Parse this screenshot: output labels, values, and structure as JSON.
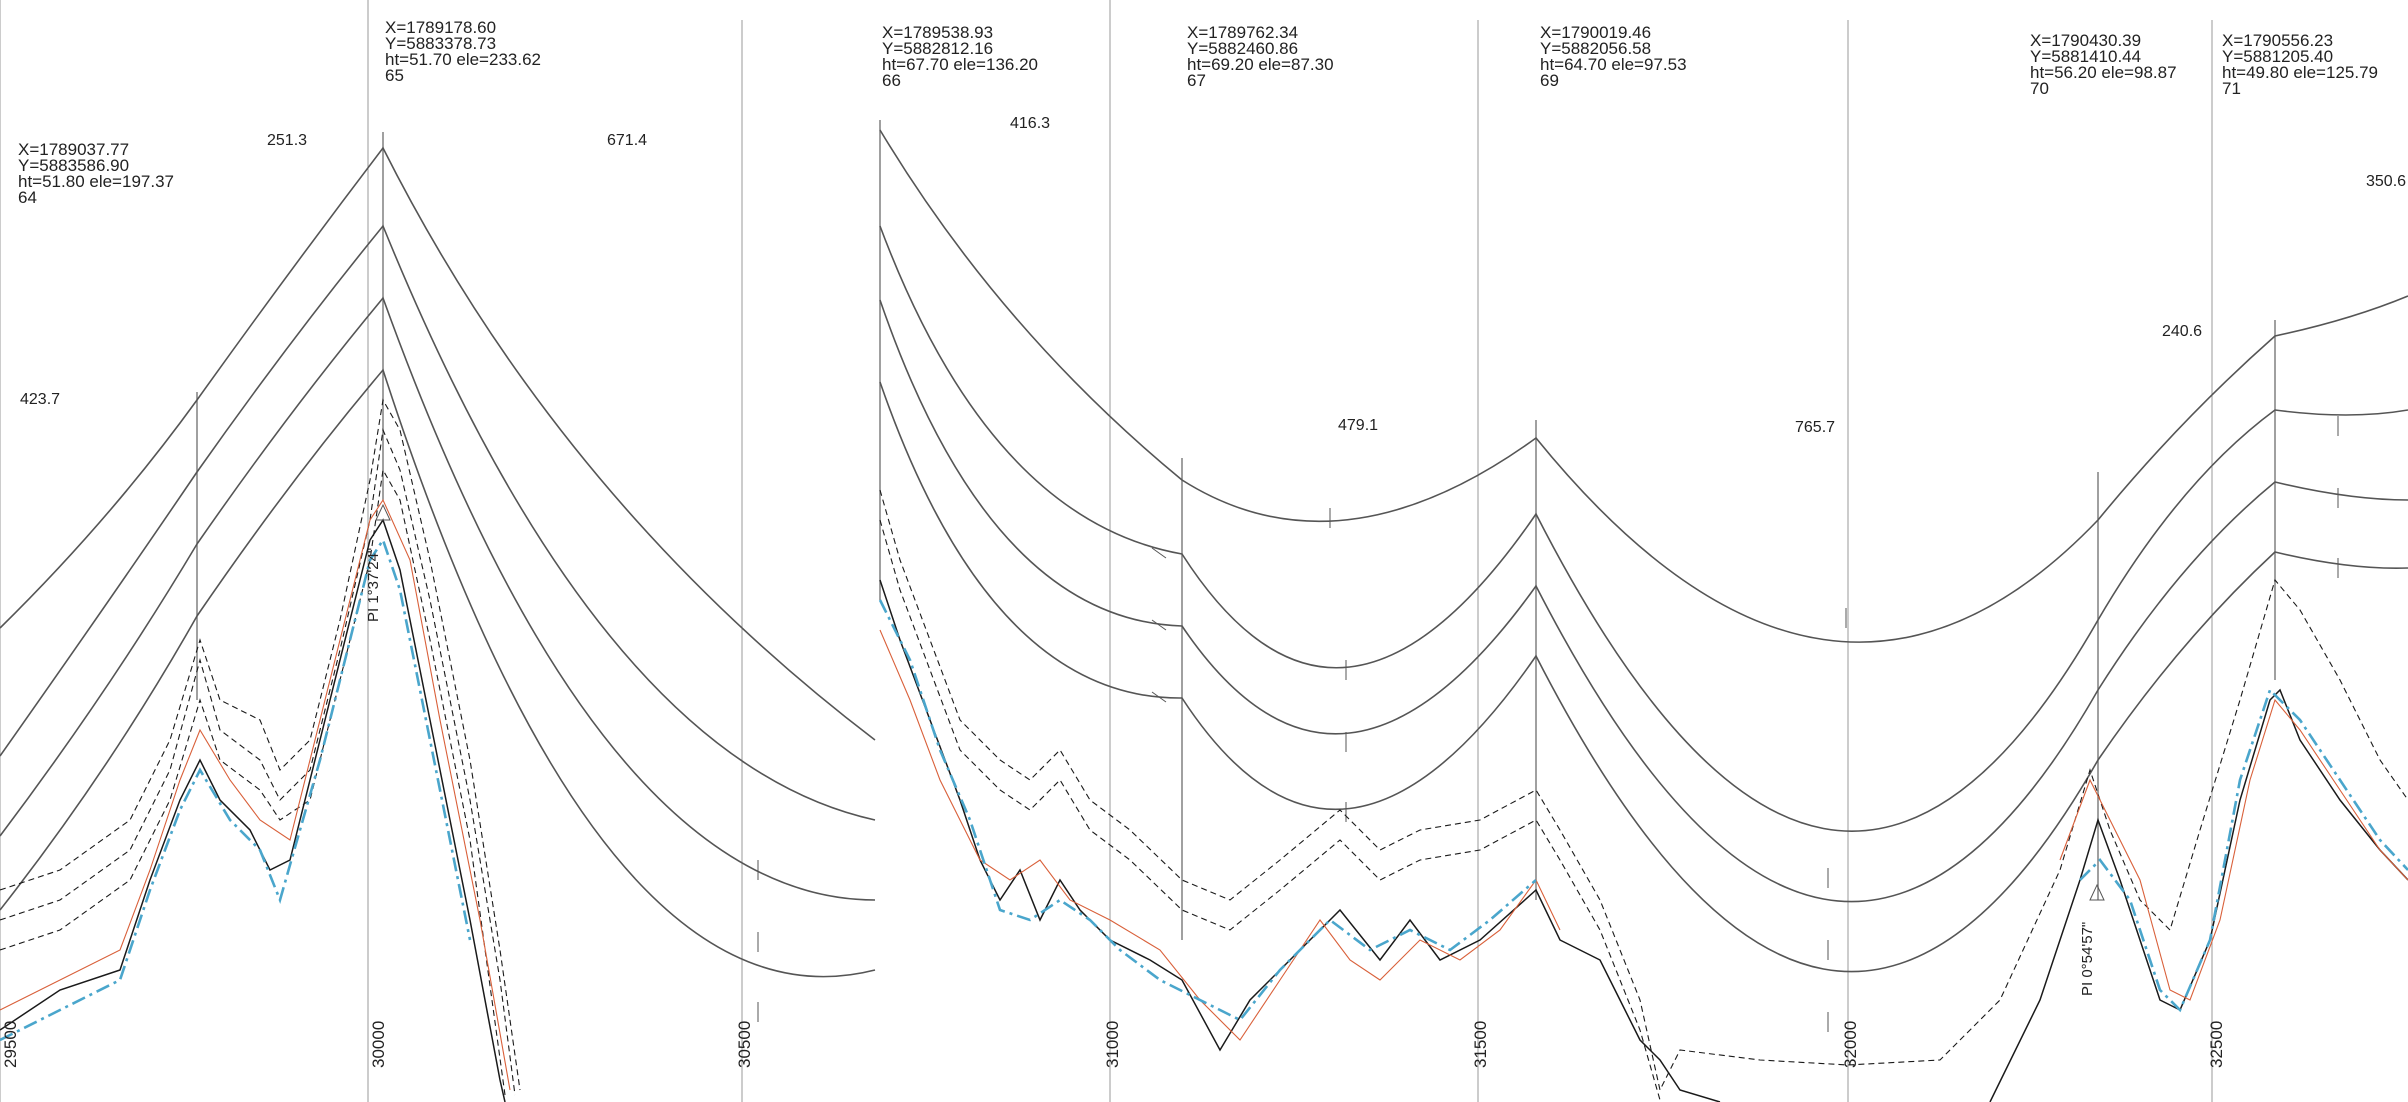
{
  "chain_labels": [
    "29500",
    "30000",
    "30500",
    "31000",
    "31500",
    "32000",
    "32500"
  ],
  "structures": [
    {
      "id": "64",
      "x": "X=1789037.77",
      "y": "Y=5883586.90",
      "ht_ele": "ht=51.80 ele=197.37"
    },
    {
      "id": "65",
      "x": "X=1789178.60",
      "y": "Y=5883378.73",
      "ht_ele": "ht=51.70 ele=233.62"
    },
    {
      "id": "66",
      "x": "X=1789538.93",
      "y": "Y=5882812.16",
      "ht_ele": "ht=67.70 ele=136.20"
    },
    {
      "id": "67",
      "x": "X=1789762.34",
      "y": "Y=5882460.86",
      "ht_ele": "ht=69.20 ele=87.30"
    },
    {
      "id": "69",
      "x": "X=1790019.46",
      "y": "Y=5882056.58",
      "ht_ele": "ht=64.70 ele=97.53"
    },
    {
      "id": "70",
      "x": "X=1790430.39",
      "y": "Y=5881410.44",
      "ht_ele": "ht=56.20 ele=98.87"
    },
    {
      "id": "71",
      "x": "X=1790556.23",
      "y": "Y=5881205.40",
      "ht_ele": "ht=49.80 ele=125.79"
    }
  ],
  "span_lengths": [
    "423.7",
    "251.3",
    "671.4",
    "416.3",
    "479.1",
    "765.7",
    "240.6",
    "350.6"
  ],
  "pi_labels": [
    "PI 1°37'24\"",
    "PI 0°54'57\""
  ],
  "colors": {
    "conductor": "#555555",
    "ground_profile": "#1a1a1a",
    "offset_left": "#d9603a",
    "offset_right": "#4aa6cc",
    "grid": "#999999"
  }
}
